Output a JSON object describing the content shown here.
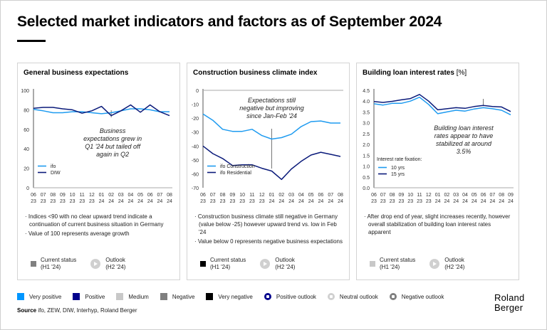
{
  "header": {
    "title": "Selected market indicators and factors as of September 2024"
  },
  "panels": [
    {
      "title": "General business expectations",
      "unit": "",
      "annotation": [
        "Business",
        "expectations grew in",
        "Q1 '24 but tailed off",
        "again in Q2"
      ],
      "notes": [
        "Indices <90 with no clear upward trend indicate a continuation of current business situation in Germany",
        "Value of 100 represents average growth"
      ],
      "current_status_label": "Current status",
      "current_status_period": "(H1 '24)",
      "current_status_color": "#808080",
      "outlook_label": "Outlook",
      "outlook_period": "(H2 '24)"
    },
    {
      "title": "Construction business climate index",
      "unit": "",
      "annotation": [
        "Expectations still",
        "negative but improving",
        "since Jan-Feb '24"
      ],
      "notes": [
        "Construction business climate still negative in Germany (value below -25) however upward trend vs. low in Feb '24",
        "Value below 0 represents negative business expectations"
      ],
      "current_status_label": "Current status",
      "current_status_period": "(H1 '24)",
      "current_status_color": "#000000",
      "outlook_label": "Outlook",
      "outlook_period": "(H2 '24)"
    },
    {
      "title": "Building loan interest rates",
      "unit": "[%]",
      "annotation": [
        "Building loan interest",
        "rates appear to have",
        "stabilized at around",
        "3.5%"
      ],
      "legend_title": "Interest rate fixation:",
      "notes": [
        "After drop end of year, slight increases recently, however overall stabilization of building loan interest rates apparent"
      ],
      "current_status_label": "Current status",
      "current_status_period": "(H1 '24)",
      "current_status_color": "#c8c8c8",
      "outlook_label": "Outlook",
      "outlook_period": "(H2 '24)"
    }
  ],
  "chart_data": [
    {
      "type": "line",
      "title": "General business expectations",
      "xlabel": "",
      "ylabel": "",
      "x": [
        "06 23",
        "07 23",
        "08 23",
        "09 23",
        "10 23",
        "11 23",
        "12 23",
        "01 24",
        "02 24",
        "03 24",
        "04 24",
        "05 24",
        "06 24",
        "07 24",
        "08 24"
      ],
      "ylim": [
        0,
        100
      ],
      "yticks": [
        0,
        20,
        40,
        60,
        80,
        100
      ],
      "grid": false,
      "legend_position": "bottom-left",
      "annotation_x": "02 24",
      "series": [
        {
          "name": "ifo",
          "color": "#1e9bf0",
          "values": [
            80.5,
            79,
            77,
            77,
            78,
            78,
            77,
            76,
            77,
            79,
            81,
            81,
            80,
            78,
            78
          ]
        },
        {
          "name": "DIW",
          "color": "#0a1a7a",
          "values": [
            81.5,
            82.5,
            82.5,
            81,
            80,
            76.5,
            79,
            83.5,
            74,
            79,
            85,
            77.5,
            85,
            78,
            74
          ]
        }
      ]
    },
    {
      "type": "line",
      "title": "Construction business climate index",
      "xlabel": "",
      "ylabel": "",
      "x": [
        "06 23",
        "07 23",
        "08 23",
        "09 23",
        "10 23",
        "11 23",
        "12 23",
        "01 24",
        "02 24",
        "03 24",
        "04 24",
        "05 24",
        "06 24",
        "07 24",
        "08 24"
      ],
      "ylim": [
        -70,
        0
      ],
      "yticks": [
        0,
        -10,
        -20,
        -30,
        -40,
        -50,
        -60,
        -70
      ],
      "grid": false,
      "legend_position": "bottom-left",
      "annotation_x": "01 24",
      "series": [
        {
          "name": "ifo Construction",
          "color": "#1e9bf0",
          "values": [
            -17,
            -21.5,
            -28,
            -29.5,
            -29.5,
            -28,
            -32.5,
            -35,
            -34,
            -31.5,
            -26,
            -22.5,
            -22,
            -23.5,
            -23.5
          ]
        },
        {
          "name": "ifo Residential",
          "color": "#0a1a7a",
          "values": [
            -40,
            -45.5,
            -49,
            -54,
            -53.5,
            -53.5,
            -56,
            -58,
            -64,
            -56.5,
            -51,
            -46.5,
            -44.5,
            -46,
            -47.5
          ]
        }
      ]
    },
    {
      "type": "line",
      "title": "Building loan interest rates [%]",
      "xlabel": "",
      "ylabel": "",
      "x": [
        "06 23",
        "07 23",
        "08 23",
        "09 23",
        "10 23",
        "11 23",
        "12 23",
        "01 24",
        "02 24",
        "03 24",
        "04 24",
        "05 24",
        "06 24",
        "07 24",
        "08 24",
        "09 24"
      ],
      "ylim": [
        0,
        4.5
      ],
      "yticks": [
        0.0,
        0.5,
        1.0,
        1.5,
        2.0,
        2.5,
        3.0,
        3.5,
        4.0,
        4.5
      ],
      "grid": false,
      "legend_position": "bottom-left",
      "annotation_x": "06 24",
      "series": [
        {
          "name": "10 yrs",
          "color": "#1e9bf0",
          "values": [
            3.88,
            3.82,
            3.9,
            3.9,
            4.0,
            4.18,
            3.85,
            3.42,
            3.5,
            3.58,
            3.54,
            3.64,
            3.7,
            3.65,
            3.58,
            3.37
          ]
        },
        {
          "name": "15 yrs",
          "color": "#0a1a7a",
          "values": [
            3.98,
            3.94,
            3.99,
            4.06,
            4.12,
            4.31,
            4.0,
            3.6,
            3.65,
            3.7,
            3.67,
            3.75,
            3.8,
            3.75,
            3.73,
            3.52
          ]
        }
      ]
    }
  ],
  "legend": {
    "items": [
      {
        "label": "Very positive",
        "color": "#0096ff",
        "shape": "square"
      },
      {
        "label": "Positive",
        "color": "#00008c",
        "shape": "square"
      },
      {
        "label": "Medium",
        "color": "#c8c8c8",
        "shape": "square"
      },
      {
        "label": "Negative",
        "color": "#7f7f7f",
        "shape": "square"
      },
      {
        "label": "Very negative",
        "color": "#000000",
        "shape": "square"
      },
      {
        "label": "Positive outlook",
        "color": "#00008c",
        "shape": "circle"
      },
      {
        "label": "Neutral outlook",
        "color": "#d0d0d0",
        "shape": "circle"
      },
      {
        "label": "Negative outlook",
        "color": "#7f7f7f",
        "shape": "circle"
      }
    ]
  },
  "footer": {
    "source_label": "Source",
    "source_text": "ifo, ZEW, DIW, Interhyp, Roland Berger",
    "logo_line1": "Roland",
    "logo_line2": "Berger"
  }
}
